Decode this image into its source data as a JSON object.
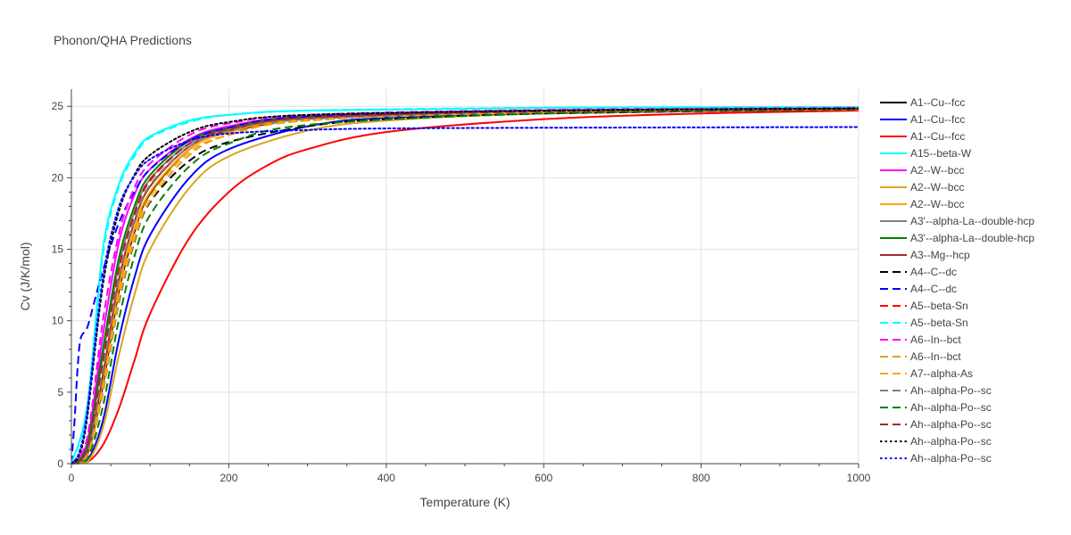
{
  "chart_data": {
    "type": "line",
    "title": "Phonon/QHA Predictions",
    "xlabel": "Temperature (K)",
    "ylabel": "Cv (J/K/mol)",
    "xlim": [
      0,
      1000
    ],
    "ylim": [
      0,
      26.2
    ],
    "x_ticks": [
      0,
      200,
      400,
      600,
      800,
      1000
    ],
    "y_ticks": [
      0,
      5,
      10,
      15,
      20,
      25
    ],
    "grid": true,
    "legend_position": "right",
    "series": [
      {
        "name": "A1--Cu--fcc",
        "color": "#000000",
        "dash": "solid",
        "points": [
          [
            0,
            0
          ],
          [
            20,
            0.6
          ],
          [
            40,
            5.5
          ],
          [
            60,
            12.0
          ],
          [
            80,
            16.2
          ],
          [
            100,
            18.9
          ],
          [
            150,
            22.0
          ],
          [
            200,
            23.2
          ],
          [
            300,
            24.2
          ],
          [
            400,
            24.5
          ],
          [
            600,
            24.7
          ],
          [
            1000,
            24.85
          ]
        ]
      },
      {
        "name": "A1--Cu--fcc",
        "color": "#0000ff",
        "dash": "solid",
        "points": [
          [
            0,
            0
          ],
          [
            20,
            0.2
          ],
          [
            40,
            3.0
          ],
          [
            60,
            8.6
          ],
          [
            80,
            13.0
          ],
          [
            100,
            16.0
          ],
          [
            150,
            20.0
          ],
          [
            200,
            22.0
          ],
          [
            300,
            23.6
          ],
          [
            400,
            24.2
          ],
          [
            600,
            24.5
          ],
          [
            1000,
            24.8
          ]
        ]
      },
      {
        "name": "A1--Cu--fcc",
        "color": "#ff0000",
        "dash": "solid",
        "points": [
          [
            0,
            0
          ],
          [
            20,
            0.1
          ],
          [
            40,
            1.3
          ],
          [
            60,
            3.8
          ],
          [
            80,
            7.2
          ],
          [
            100,
            10.5
          ],
          [
            150,
            15.8
          ],
          [
            200,
            19.0
          ],
          [
            250,
            20.9
          ],
          [
            300,
            22.0
          ],
          [
            400,
            23.2
          ],
          [
            600,
            24.1
          ],
          [
            800,
            24.5
          ],
          [
            1000,
            24.7
          ]
        ]
      },
      {
        "name": "A15--beta-W",
        "color": "#00ffff",
        "dash": "solid",
        "points": [
          [
            0,
            0
          ],
          [
            20,
            4.0
          ],
          [
            40,
            15.0
          ],
          [
            60,
            19.5
          ],
          [
            80,
            21.7
          ],
          [
            100,
            22.9
          ],
          [
            150,
            24.0
          ],
          [
            200,
            24.4
          ],
          [
            300,
            24.7
          ],
          [
            600,
            24.9
          ],
          [
            1000,
            24.95
          ]
        ]
      },
      {
        "name": "A2--W--bcc",
        "color": "#ff00ff",
        "dash": "solid",
        "points": [
          [
            0,
            0
          ],
          [
            20,
            1.5
          ],
          [
            40,
            9.0
          ],
          [
            60,
            15.4
          ],
          [
            80,
            18.8
          ],
          [
            100,
            20.6
          ],
          [
            150,
            22.7
          ],
          [
            200,
            23.6
          ],
          [
            300,
            24.3
          ],
          [
            600,
            24.7
          ],
          [
            1000,
            24.85
          ]
        ]
      },
      {
        "name": "A2--W--bcc",
        "color": "#daa520",
        "dash": "solid",
        "points": [
          [
            0,
            0
          ],
          [
            20,
            0.1
          ],
          [
            40,
            2.5
          ],
          [
            60,
            7.5
          ],
          [
            80,
            11.8
          ],
          [
            100,
            15.0
          ],
          [
            150,
            19.3
          ],
          [
            200,
            21.5
          ],
          [
            300,
            23.3
          ],
          [
            400,
            24.0
          ],
          [
            600,
            24.5
          ],
          [
            1000,
            24.8
          ]
        ]
      },
      {
        "name": "A2--W--bcc",
        "color": "#ffa500",
        "dash": "solid",
        "points": [
          [
            0,
            0
          ],
          [
            20,
            0.6
          ],
          [
            40,
            5.8
          ],
          [
            60,
            12.3
          ],
          [
            80,
            16.4
          ],
          [
            100,
            19.0
          ],
          [
            150,
            22.0
          ],
          [
            200,
            23.2
          ],
          [
            300,
            24.1
          ],
          [
            600,
            24.6
          ],
          [
            1000,
            24.8
          ]
        ]
      },
      {
        "name": "A3'--alpha-La--double-hcp",
        "color": "#808080",
        "dash": "solid",
        "points": [
          [
            0,
            0
          ],
          [
            20,
            1.0
          ],
          [
            40,
            7.5
          ],
          [
            60,
            13.8
          ],
          [
            80,
            17.6
          ],
          [
            100,
            19.9
          ],
          [
            150,
            22.4
          ],
          [
            200,
            23.4
          ],
          [
            300,
            24.2
          ],
          [
            600,
            24.6
          ],
          [
            1000,
            24.8
          ]
        ]
      },
      {
        "name": "A3'--alpha-La--double-hcp",
        "color": "#008000",
        "dash": "solid",
        "points": [
          [
            0,
            0
          ],
          [
            20,
            1.2
          ],
          [
            40,
            8.0
          ],
          [
            60,
            14.3
          ],
          [
            80,
            18.0
          ],
          [
            100,
            20.2
          ],
          [
            150,
            22.6
          ],
          [
            200,
            23.5
          ],
          [
            300,
            24.3
          ],
          [
            600,
            24.7
          ],
          [
            1000,
            24.85
          ]
        ]
      },
      {
        "name": "A3--Mg--hcp",
        "color": "#a52a2a",
        "dash": "solid",
        "points": [
          [
            0,
            0
          ],
          [
            20,
            0.7
          ],
          [
            40,
            6.2
          ],
          [
            60,
            12.8
          ],
          [
            80,
            16.9
          ],
          [
            100,
            19.4
          ],
          [
            150,
            22.2
          ],
          [
            200,
            23.3
          ],
          [
            300,
            24.2
          ],
          [
            600,
            24.6
          ],
          [
            1000,
            24.8
          ]
        ]
      },
      {
        "name": "A4--C--dc",
        "color": "#000000",
        "dash": "dash",
        "points": [
          [
            0,
            0
          ],
          [
            20,
            0.5
          ],
          [
            40,
            5.0
          ],
          [
            60,
            11.2
          ],
          [
            80,
            15.5
          ],
          [
            100,
            18.3
          ],
          [
            150,
            21.2
          ],
          [
            200,
            22.5
          ],
          [
            300,
            23.6
          ],
          [
            400,
            24.1
          ],
          [
            600,
            24.5
          ],
          [
            1000,
            24.8
          ]
        ]
      },
      {
        "name": "A4--C--dc",
        "color": "#0000ff",
        "dash": "dash",
        "points": [
          [
            0,
            0
          ],
          [
            4,
            3.0
          ],
          [
            8,
            6.8
          ],
          [
            12,
            8.8
          ],
          [
            20,
            9.5
          ],
          [
            30,
            11.5
          ],
          [
            40,
            13.5
          ],
          [
            60,
            16.8
          ],
          [
            80,
            19.0
          ],
          [
            100,
            20.6
          ],
          [
            150,
            22.6
          ],
          [
            200,
            23.5
          ],
          [
            300,
            24.3
          ],
          [
            600,
            24.7
          ],
          [
            1000,
            24.85
          ]
        ]
      },
      {
        "name": "A5--beta-Sn",
        "color": "#ff0000",
        "dash": "dash",
        "points": [
          [
            0,
            0
          ],
          [
            20,
            0.9
          ],
          [
            40,
            7.0
          ],
          [
            60,
            13.5
          ],
          [
            80,
            17.4
          ],
          [
            100,
            19.8
          ],
          [
            150,
            22.4
          ],
          [
            200,
            23.4
          ],
          [
            300,
            24.2
          ],
          [
            600,
            24.6
          ],
          [
            1000,
            24.8
          ]
        ]
      },
      {
        "name": "A5--beta-Sn",
        "color": "#00ffff",
        "dash": "dash",
        "points": [
          [
            0,
            0
          ],
          [
            20,
            3.8
          ],
          [
            40,
            14.6
          ],
          [
            60,
            19.3
          ],
          [
            80,
            21.5
          ],
          [
            100,
            22.8
          ],
          [
            150,
            23.9
          ],
          [
            200,
            24.4
          ],
          [
            300,
            24.7
          ],
          [
            600,
            24.9
          ],
          [
            1000,
            24.95
          ]
        ]
      },
      {
        "name": "A6--In--bct",
        "color": "#ff00ff",
        "dash": "dash",
        "points": [
          [
            0,
            0
          ],
          [
            20,
            1.8
          ],
          [
            40,
            10.0
          ],
          [
            60,
            16.0
          ],
          [
            80,
            19.3
          ],
          [
            100,
            21.0
          ],
          [
            150,
            23.0
          ],
          [
            200,
            23.8
          ],
          [
            300,
            24.4
          ],
          [
            600,
            24.75
          ],
          [
            1000,
            24.9
          ]
        ]
      },
      {
        "name": "A6--In--bct",
        "color": "#daa520",
        "dash": "dash",
        "points": [
          [
            0,
            0
          ],
          [
            20,
            0.5
          ],
          [
            40,
            5.0
          ],
          [
            60,
            11.3
          ],
          [
            80,
            15.6
          ],
          [
            100,
            18.4
          ],
          [
            150,
            21.6
          ],
          [
            200,
            23.0
          ],
          [
            300,
            24.0
          ],
          [
            600,
            24.6
          ],
          [
            1000,
            24.8
          ]
        ]
      },
      {
        "name": "A7--alpha-As",
        "color": "#ffa500",
        "dash": "dash",
        "points": [
          [
            0,
            0
          ],
          [
            20,
            0.6
          ],
          [
            40,
            5.5
          ],
          [
            60,
            11.8
          ],
          [
            80,
            16.0
          ],
          [
            100,
            18.7
          ],
          [
            150,
            21.8
          ],
          [
            200,
            23.0
          ],
          [
            300,
            24.0
          ],
          [
            600,
            24.6
          ],
          [
            1000,
            24.8
          ]
        ]
      },
      {
        "name": "Ah--alpha-Po--sc",
        "color": "#808080",
        "dash": "dash",
        "points": [
          [
            0,
            0
          ],
          [
            20,
            0.8
          ],
          [
            40,
            6.5
          ],
          [
            60,
            12.9
          ],
          [
            80,
            17.0
          ],
          [
            100,
            19.5
          ],
          [
            150,
            22.2
          ],
          [
            200,
            23.3
          ],
          [
            300,
            24.1
          ],
          [
            600,
            24.6
          ],
          [
            1000,
            24.8
          ]
        ]
      },
      {
        "name": "Ah--alpha-Po--sc",
        "color": "#008000",
        "dash": "dash",
        "points": [
          [
            0,
            0
          ],
          [
            20,
            0.3
          ],
          [
            40,
            4.0
          ],
          [
            60,
            10.0
          ],
          [
            80,
            14.5
          ],
          [
            100,
            17.4
          ],
          [
            150,
            20.8
          ],
          [
            200,
            22.4
          ],
          [
            300,
            23.7
          ],
          [
            600,
            24.5
          ],
          [
            1000,
            24.8
          ]
        ]
      },
      {
        "name": "Ah--alpha-Po--sc",
        "color": "#a52a2a",
        "dash": "dash",
        "points": [
          [
            0,
            0
          ],
          [
            20,
            1.0
          ],
          [
            40,
            7.2
          ],
          [
            60,
            13.6
          ],
          [
            80,
            17.5
          ],
          [
            100,
            19.9
          ],
          [
            150,
            22.4
          ],
          [
            200,
            23.4
          ],
          [
            300,
            24.2
          ],
          [
            600,
            24.65
          ],
          [
            1000,
            24.85
          ]
        ]
      },
      {
        "name": "Ah--alpha-Po--sc",
        "color": "#000000",
        "dash": "dot",
        "points": [
          [
            0,
            0
          ],
          [
            10,
            0.6
          ],
          [
            20,
            3.2
          ],
          [
            40,
            12.5
          ],
          [
            60,
            17.6
          ],
          [
            80,
            20.2
          ],
          [
            100,
            21.6
          ],
          [
            150,
            23.2
          ],
          [
            200,
            23.9
          ],
          [
            300,
            24.4
          ],
          [
            600,
            24.7
          ],
          [
            1000,
            24.85
          ]
        ]
      },
      {
        "name": "Ah--alpha-Po--sc",
        "color": "#0000ff",
        "dash": "dot",
        "points": [
          [
            0,
            0
          ],
          [
            10,
            0.8
          ],
          [
            20,
            3.6
          ],
          [
            40,
            13.0
          ],
          [
            60,
            17.9
          ],
          [
            80,
            20.1
          ],
          [
            100,
            21.3
          ],
          [
            150,
            22.6
          ],
          [
            200,
            23.1
          ],
          [
            300,
            23.35
          ],
          [
            400,
            23.45
          ],
          [
            600,
            23.5
          ],
          [
            1000,
            23.55
          ]
        ]
      }
    ]
  }
}
